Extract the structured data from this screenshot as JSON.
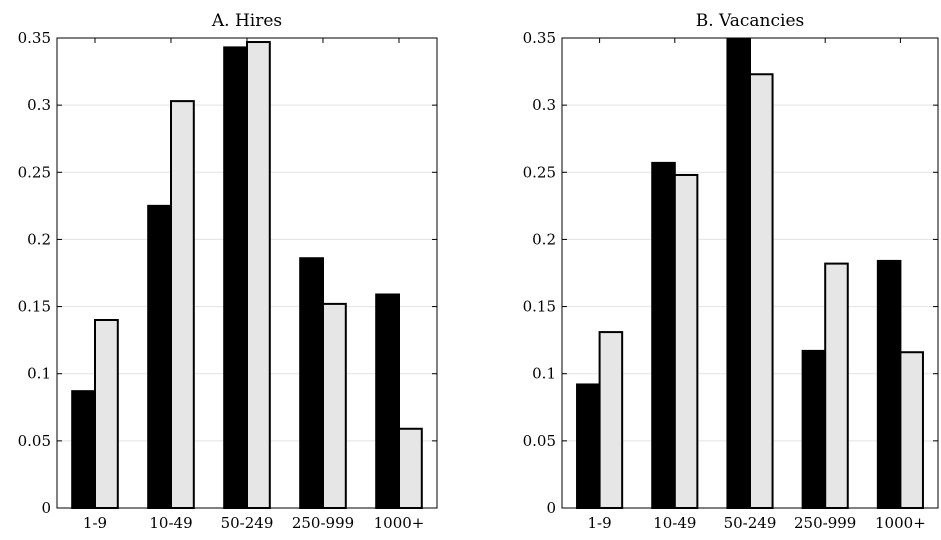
{
  "chart_data": [
    {
      "type": "bar",
      "title": "A. Hires",
      "xlabel": "",
      "ylabel": "",
      "categories": [
        "1-9",
        "10-49",
        "50-249",
        "250-999",
        "1000+"
      ],
      "series": [
        {
          "color": "#000000",
          "values": [
            0.087,
            0.225,
            0.343,
            0.186,
            0.159
          ]
        },
        {
          "color": "#e6e6e6",
          "values": [
            0.14,
            0.303,
            0.347,
            0.152,
            0.059
          ]
        }
      ],
      "ylim": [
        0,
        0.35
      ],
      "yticks": [
        0,
        0.05,
        0.1,
        0.15,
        0.2,
        0.25,
        0.3,
        0.35
      ],
      "ytick_labels": [
        "0",
        "0.05",
        "0.1",
        "0.15",
        "0.2",
        "0.25",
        "0.3",
        "0.35"
      ],
      "grid": true,
      "legend": "none"
    },
    {
      "type": "bar",
      "title": "B. Vacancies",
      "xlabel": "",
      "ylabel": "",
      "categories": [
        "1-9",
        "10-49",
        "50-249",
        "250-999",
        "1000+"
      ],
      "series": [
        {
          "color": "#000000",
          "values": [
            0.092,
            0.257,
            0.349,
            0.117,
            0.184
          ]
        },
        {
          "color": "#e6e6e6",
          "values": [
            0.131,
            0.248,
            0.323,
            0.182,
            0.116
          ]
        }
      ],
      "ylim": [
        0,
        0.35
      ],
      "yticks": [
        0,
        0.05,
        0.1,
        0.15,
        0.2,
        0.25,
        0.3,
        0.35
      ],
      "ytick_labels": [
        "0",
        "0.05",
        "0.1",
        "0.15",
        "0.2",
        "0.25",
        "0.3",
        "0.35"
      ],
      "grid": true,
      "legend": "none"
    }
  ]
}
